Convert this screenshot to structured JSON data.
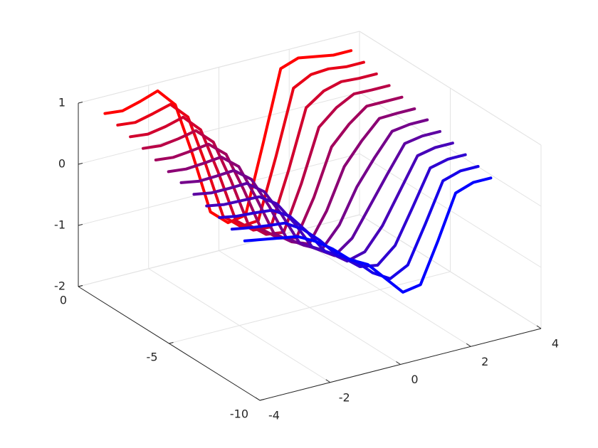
{
  "chart_data": {
    "type": "line3d",
    "xlim": [
      -4,
      4
    ],
    "ylim": [
      -10,
      0
    ],
    "zlim": [
      -2,
      1
    ],
    "xticks": [
      -4,
      -2,
      0,
      2,
      4
    ],
    "yticks": [
      -10,
      -5,
      0
    ],
    "zticks": [
      -2,
      -1,
      0,
      1
    ],
    "grid": true,
    "x": [
      -3.5,
      -3,
      -2.5,
      -2,
      -1.5,
      -1,
      -0.5,
      0,
      0.5,
      1,
      1.5,
      2,
      2.5,
      3,
      3.5
    ],
    "series": [
      {
        "y": -0.5,
        "color": "#ff0000",
        "values": [
          0.85,
          0.82,
          0.9,
          1.0,
          0.7,
          -0.2,
          -1.2,
          -1.45,
          -1.4,
          -0.3,
          0.85,
          0.95,
          0.9,
          0.85,
          0.85
        ]
      },
      {
        "y": -1.2,
        "color": "#e80017",
        "values": [
          0.79,
          0.76,
          0.83,
          0.91,
          0.63,
          -0.21,
          -1.14,
          -1.38,
          -1.36,
          -0.39,
          0.66,
          0.81,
          0.83,
          0.79,
          0.79
        ]
      },
      {
        "y": -1.9,
        "color": "#d1002e",
        "values": [
          0.73,
          0.7,
          0.75,
          0.83,
          0.55,
          -0.22,
          -1.08,
          -1.31,
          -1.33,
          -0.48,
          0.47,
          0.67,
          0.75,
          0.73,
          0.73
        ]
      },
      {
        "y": -2.6,
        "color": "#b90046",
        "values": [
          0.67,
          0.64,
          0.68,
          0.74,
          0.48,
          -0.22,
          -1.02,
          -1.25,
          -1.29,
          -0.57,
          0.28,
          0.53,
          0.68,
          0.67,
          0.67
        ]
      },
      {
        "y": -3.3,
        "color": "#a2005d",
        "values": [
          0.61,
          0.58,
          0.61,
          0.65,
          0.41,
          -0.24,
          -0.96,
          -1.18,
          -1.25,
          -0.66,
          0.09,
          0.39,
          0.61,
          0.61,
          0.61
        ]
      },
      {
        "y": -4.0,
        "color": "#8b0074",
        "values": [
          0.55,
          0.52,
          0.54,
          0.57,
          0.34,
          -0.25,
          -0.9,
          -1.11,
          -1.22,
          -0.75,
          -0.1,
          0.25,
          0.54,
          0.55,
          0.55
        ]
      },
      {
        "y": -4.7,
        "color": "#74008b",
        "values": [
          0.5,
          0.45,
          0.46,
          0.48,
          0.26,
          -0.25,
          -0.85,
          -1.04,
          -1.18,
          -0.85,
          -0.3,
          0.1,
          0.46,
          0.5,
          0.5
        ]
      },
      {
        "y": -5.4,
        "color": "#5d00a2",
        "values": [
          0.44,
          0.39,
          0.39,
          0.4,
          0.19,
          -0.26,
          -0.79,
          -0.97,
          -1.15,
          -0.94,
          -0.49,
          -0.04,
          0.39,
          0.44,
          0.44
        ]
      },
      {
        "y": -6.1,
        "color": "#4600b9",
        "values": [
          0.38,
          0.33,
          0.32,
          0.31,
          0.12,
          -0.27,
          -0.73,
          -0.9,
          -1.11,
          -1.03,
          -0.68,
          -0.18,
          0.32,
          0.38,
          0.38
        ]
      },
      {
        "y": -6.8,
        "color": "#2e00d1",
        "values": [
          0.32,
          0.27,
          0.25,
          0.22,
          0.05,
          -0.28,
          -0.67,
          -0.84,
          -1.07,
          -1.12,
          -0.87,
          -0.32,
          0.25,
          0.32,
          0.32
        ]
      },
      {
        "y": -7.5,
        "color": "#1700e8",
        "values": [
          0.26,
          0.21,
          0.17,
          0.14,
          -0.03,
          -0.29,
          -0.61,
          -0.77,
          -1.04,
          -1.21,
          -1.06,
          -0.46,
          0.17,
          0.26,
          0.26
        ]
      },
      {
        "y": -8.2,
        "color": "#0000ff",
        "values": [
          0.2,
          0.15,
          0.1,
          0.05,
          -0.1,
          -0.3,
          -0.55,
          -0.7,
          -1.0,
          -1.3,
          -1.25,
          -0.6,
          0.1,
          0.2,
          0.2
        ]
      }
    ]
  }
}
